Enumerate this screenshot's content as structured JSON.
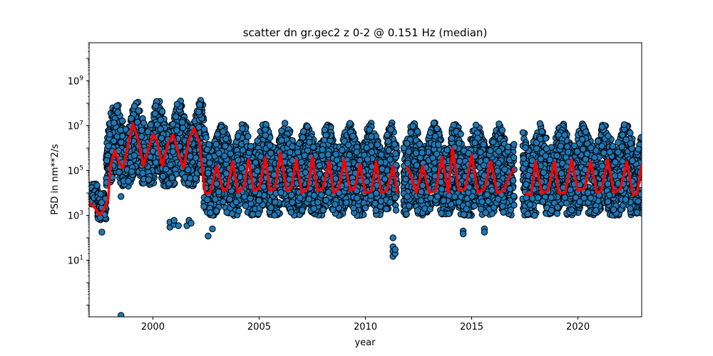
{
  "chart_data": {
    "type": "scatter",
    "title": "scatter dn gr.gec2 z 0-2 @ 0.151 Hz (median)",
    "xlabel": "year",
    "ylabel": "PSD in nm**2/s",
    "xlim": [
      1997.0,
      2023.0
    ],
    "ylim": [
      0.03,
      50000000000.0
    ],
    "yscale": "log",
    "grid": false,
    "x_ticks": [
      2000,
      2005,
      2010,
      2015,
      2020
    ],
    "y_ticks": [
      {
        "value": 10,
        "mant": "10",
        "exp": "1"
      },
      {
        "value": 1000,
        "mant": "10",
        "exp": "3"
      },
      {
        "value": 100000,
        "mant": "10",
        "exp": "5"
      },
      {
        "value": 10000000,
        "mant": "10",
        "exp": "7"
      },
      {
        "value": 1000000000,
        "mant": "10",
        "exp": "9"
      }
    ],
    "colors": {
      "scatter_fill": "#1f77b4",
      "scatter_edge": "#000000",
      "median_line": "#ff0000"
    },
    "series": [
      {
        "kind": "scatter-band",
        "segments": [
          {
            "x": [
              1997.0,
              1997.4
            ],
            "low_log10": 3.5,
            "high_log10": 4.4
          },
          {
            "x": [
              1997.4,
              1997.8
            ],
            "low_log10": 2.8,
            "high_log10": 4.0
          },
          {
            "x": [
              1997.8,
              2002.4
            ],
            "low_log10": 4.3,
            "high_log10": 7.5,
            "seasonal_amp": 1.1
          },
          {
            "x": [
              2002.4,
              2023.0
            ],
            "low_log10": 3.0,
            "high_log10": 6.6,
            "seasonal_amp": 0.9
          }
        ],
        "gaps": [
          [
            2011.5,
            2011.8
          ],
          [
            2017.0,
            2017.4
          ]
        ],
        "outliers": [
          {
            "x": 1997.6,
            "y": 180
          },
          {
            "x": 1998.5,
            "y": 0.035
          },
          {
            "x": 1998.5,
            "y": 7000
          },
          {
            "x": 2000.8,
            "y": 300
          },
          {
            "x": 2000.8,
            "y": 500
          },
          {
            "x": 2001.0,
            "y": 400
          },
          {
            "x": 2001.0,
            "y": 600
          },
          {
            "x": 2001.2,
            "y": 350
          },
          {
            "x": 2001.6,
            "y": 350
          },
          {
            "x": 2001.7,
            "y": 600
          },
          {
            "x": 2001.8,
            "y": 450
          },
          {
            "x": 2002.6,
            "y": 120
          },
          {
            "x": 2002.8,
            "y": 250
          },
          {
            "x": 2011.3,
            "y": 100
          },
          {
            "x": 2011.3,
            "y": 40
          },
          {
            "x": 2011.3,
            "y": 25
          },
          {
            "x": 2011.3,
            "y": 15
          },
          {
            "x": 2011.4,
            "y": 20
          },
          {
            "x": 2011.4,
            "y": 30
          },
          {
            "x": 2014.6,
            "y": 200
          },
          {
            "x": 2014.6,
            "y": 150
          },
          {
            "x": 2015.6,
            "y": 250
          },
          {
            "x": 2015.6,
            "y": 180
          }
        ]
      },
      {
        "kind": "median-line",
        "x": [
          1997.0,
          1997.3,
          1997.5,
          1997.7,
          1997.9,
          1998.0,
          1998.2,
          1998.4,
          1998.6,
          1998.85,
          1999.05,
          1999.3,
          1999.55,
          1999.8,
          2000.0,
          2000.2,
          2000.45,
          2000.7,
          2000.95,
          2001.2,
          2001.45,
          2001.7,
          2001.95,
          2002.2,
          2002.45,
          2002.7,
          2003.0,
          2003.3,
          2003.5,
          2003.75,
          2004.0,
          2004.3,
          2004.5,
          2004.75,
          2005.0,
          2005.3,
          2005.5,
          2005.75,
          2006.0,
          2006.3,
          2006.5,
          2006.75,
          2007.0,
          2007.3,
          2007.5,
          2007.75,
          2008.0,
          2008.3,
          2008.5,
          2008.75,
          2009.0,
          2009.3,
          2009.5,
          2009.75,
          2010.0,
          2010.3,
          2010.5,
          2010.75,
          2011.0,
          2011.3,
          2011.5
        ],
        "y_log10": [
          3.6,
          3.3,
          3.0,
          3.3,
          3.7,
          5.2,
          5.9,
          5.4,
          5.1,
          6.2,
          7.1,
          6.4,
          5.2,
          6.0,
          6.6,
          6.3,
          5.2,
          6.2,
          6.6,
          5.8,
          5.1,
          6.4,
          6.9,
          6.2,
          4.0,
          4.0,
          5.2,
          4.1,
          4.2,
          5.4,
          4.0,
          4.3,
          5.5,
          4.1,
          4.2,
          5.6,
          4.1,
          4.2,
          5.8,
          4.1,
          4.2,
          5.5,
          4.0,
          4.2,
          5.6,
          4.1,
          4.2,
          5.4,
          4.0,
          4.2,
          5.5,
          4.1,
          4.2,
          5.3,
          4.0,
          4.1,
          5.4,
          4.0,
          4.1,
          5.2,
          4.0
        ]
      },
      {
        "kind": "median-line",
        "x": [
          2011.9,
          2012.1,
          2012.4,
          2012.7,
          2013.0,
          2013.3,
          2013.6,
          2013.9,
          2014.1,
          2014.4,
          2014.7,
          2015.0,
          2015.3,
          2015.6,
          2015.9,
          2016.2,
          2016.5,
          2016.75,
          2017.0
        ],
        "y_log10": [
          5.2,
          4.9,
          4.0,
          5.2,
          4.0,
          4.1,
          5.6,
          4.0,
          6.0,
          4.1,
          4.2,
          5.7,
          4.0,
          4.2,
          5.4,
          4.0,
          4.1,
          4.7,
          5.1
        ]
      },
      {
        "kind": "median-line",
        "x": [
          2017.5,
          2017.8,
          2018.0,
          2018.3,
          2018.6,
          2018.9,
          2019.1,
          2019.4,
          2019.7,
          2020.0,
          2020.3,
          2020.6,
          2020.9,
          2021.1,
          2021.4,
          2021.7,
          2022.0,
          2022.3,
          2022.6,
          2022.8,
          2023.0
        ],
        "y_log10": [
          4.0,
          3.9,
          5.4,
          4.0,
          4.1,
          5.4,
          4.0,
          4.0,
          5.5,
          4.1,
          4.2,
          5.4,
          4.0,
          4.1,
          5.5,
          4.0,
          4.2,
          5.4,
          3.9,
          4.0,
          5.3
        ]
      }
    ]
  }
}
